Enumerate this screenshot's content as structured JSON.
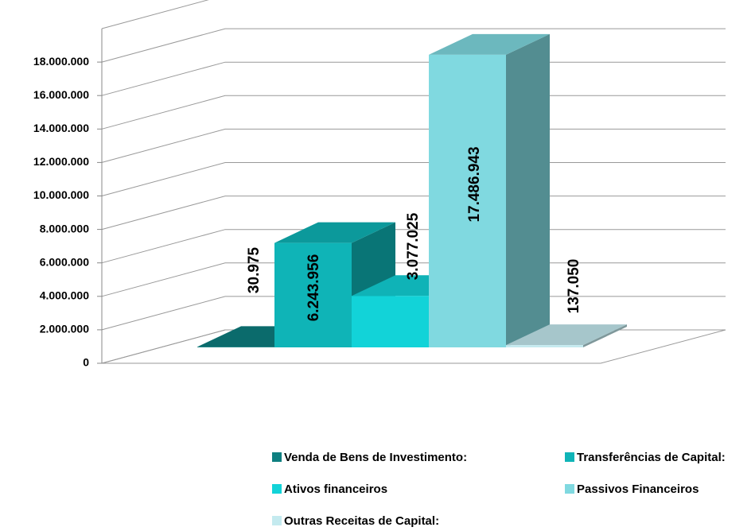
{
  "chart_data": {
    "type": "bar3d",
    "series": [
      {
        "name": "Venda de Bens de Investimento:",
        "color": "#0e7f80",
        "values": [
          30975
        ],
        "value_labels": [
          "30.975"
        ]
      },
      {
        "name": "Transferências de Capital:",
        "color": "#0fb4b7",
        "values": [
          6243956
        ],
        "value_labels": [
          "6.243.956"
        ]
      },
      {
        "name": "Ativos financeiros",
        "color": "#12d3d8",
        "values": [
          3077025
        ],
        "value_labels": [
          "3.077.025"
        ]
      },
      {
        "name": "Passivos Financeiros",
        "color": "#80d9e0",
        "values": [
          17486943
        ],
        "value_labels": [
          "17.486.943"
        ]
      },
      {
        "name": "Outras Receitas de Capital:",
        "color": "#c4eaef",
        "values": [
          137050
        ],
        "value_labels": [
          "137.050"
        ]
      }
    ],
    "ylim": [
      0,
      20000000
    ],
    "yticks": [
      {
        "value": 0,
        "label": "0"
      },
      {
        "value": 2000000,
        "label": "2.000.000"
      },
      {
        "value": 4000000,
        "label": "4.000.000"
      },
      {
        "value": 6000000,
        "label": "6.000.000"
      },
      {
        "value": 8000000,
        "label": "8.000.000"
      },
      {
        "value": 10000000,
        "label": "10.000.000"
      },
      {
        "value": 12000000,
        "label": "12.000.000"
      },
      {
        "value": 14000000,
        "label": "14.000.000"
      },
      {
        "value": 16000000,
        "label": "16.000.000"
      },
      {
        "value": 18000000,
        "label": "18.000.000"
      }
    ],
    "grid": true
  }
}
